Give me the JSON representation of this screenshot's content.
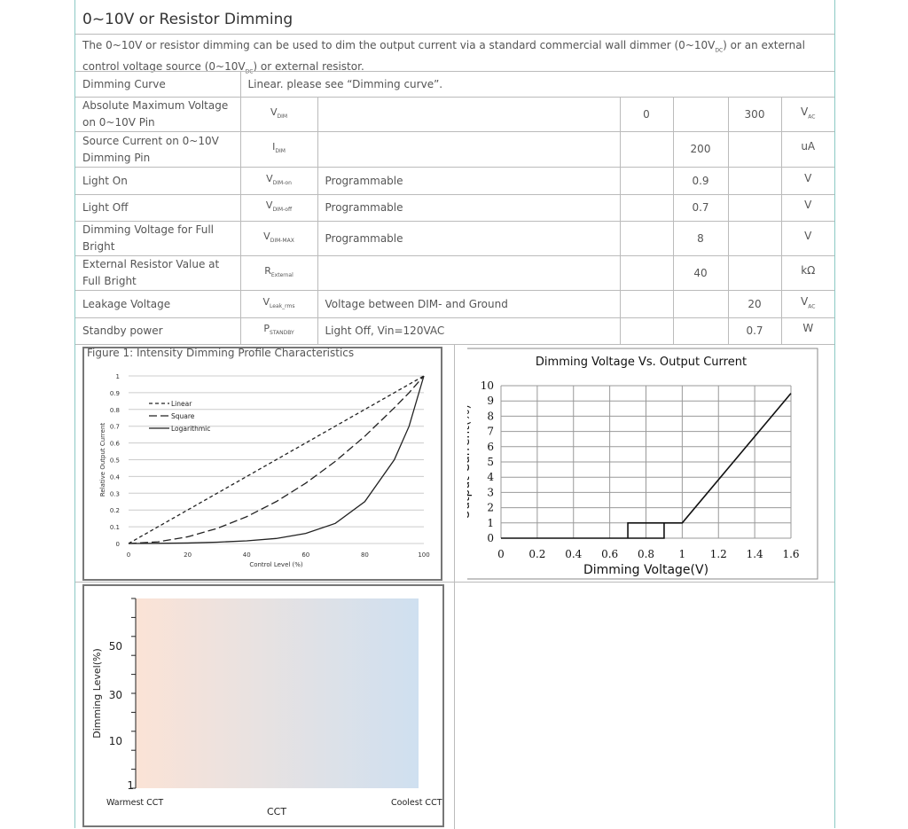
{
  "section": {
    "title": "0~10V or Resistor Dimming",
    "description_parts": [
      "The 0~10V or resistor dimming can be used to dim the output current via a standard commercial wall dimmer (0~10V",
      "DC",
      ") or an external control voltage source (0~10V",
      "DC",
      ") or external resistor."
    ]
  },
  "dimming_curve": {
    "label": "Dimming Curve",
    "value": "Linear. please see “Dimming curve”."
  },
  "rows": [
    {
      "param": "Absolute Maximum Voltage on 0~10V Pin",
      "sym": "V",
      "sub": "DIM",
      "cond": "",
      "min": "0",
      "typ": "",
      "max": "300",
      "unit": "V",
      "unit_sub": "AC"
    },
    {
      "param": "Source Current on 0~10V Dimming Pin",
      "sym": "I",
      "sub": "DIM",
      "cond": "",
      "min": "",
      "typ": "200",
      "max": "",
      "unit": "uA",
      "unit_sub": ""
    },
    {
      "param": "Light On",
      "sym": "V",
      "sub": "DIM-on",
      "cond": "Programmable",
      "min": "",
      "typ": "0.9",
      "max": "",
      "unit": "V",
      "unit_sub": ""
    },
    {
      "param": "Light Off",
      "sym": "V",
      "sub": "DIM-off",
      "cond": "Programmable",
      "min": "",
      "typ": "0.7",
      "max": "",
      "unit": "V",
      "unit_sub": ""
    },
    {
      "param": "Dimming Voltage for Full Bright",
      "sym": "V",
      "sub": "DIM-MAX",
      "cond": "Programmable",
      "min": "",
      "typ": "8",
      "max": "",
      "unit": "V",
      "unit_sub": ""
    },
    {
      "param": "External Resistor Value at Full Bright",
      "sym": "R",
      "sub": "External",
      "cond": "",
      "min": "",
      "typ": "40",
      "max": "",
      "unit": "kΩ",
      "unit_sub": ""
    },
    {
      "param": "Leakage Voltage",
      "sym": "V",
      "sub": "Leak_rms",
      "cond": "Voltage between DIM- and Ground",
      "min": "",
      "typ": "",
      "max": "20",
      "unit": "V",
      "unit_sub": "AC"
    },
    {
      "param": "Standby power",
      "sym": "P",
      "sub": "STANDBY",
      "cond": "Light Off, Vin=120VAC",
      "min": "",
      "typ": "",
      "max": "0.7",
      "unit": "W",
      "unit_sub": ""
    }
  ],
  "chart_data": [
    {
      "type": "line",
      "title": "Figure 1: Intensity Dimming Profile Characteristics",
      "xlabel": "Control Level (%)",
      "ylabel": "Relative Output Current",
      "xlim": [
        0,
        100
      ],
      "ylim": [
        0,
        1
      ],
      "xticks": [
        "0",
        "20",
        "40",
        "60",
        "80",
        "100"
      ],
      "yticks": [
        "0",
        "0.1",
        "0.2",
        "0.3",
        "0.4",
        "0.5",
        "0.6",
        "0.7",
        "0.8",
        "0.9",
        "1"
      ],
      "grid": true,
      "legend": "top-left",
      "x": [
        0,
        10,
        20,
        30,
        40,
        50,
        60,
        70,
        80,
        90,
        95,
        100
      ],
      "series": [
        {
          "name": "Linear",
          "style": "short-dash",
          "values": [
            0,
            0.1,
            0.2,
            0.3,
            0.4,
            0.5,
            0.6,
            0.7,
            0.8,
            0.9,
            0.95,
            1
          ]
        },
        {
          "name": "Square",
          "style": "long-dash",
          "values": [
            0,
            0.01,
            0.04,
            0.09,
            0.16,
            0.25,
            0.36,
            0.49,
            0.64,
            0.81,
            0.9,
            1
          ]
        },
        {
          "name": "Logarithmic",
          "style": "solid",
          "values": [
            0,
            0.001,
            0.003,
            0.008,
            0.016,
            0.03,
            0.06,
            0.12,
            0.25,
            0.5,
            0.7,
            1
          ]
        }
      ]
    },
    {
      "type": "line",
      "title": "Dimming Voltage Vs. Output Current",
      "xlabel": "Dimming Voltage(V)",
      "ylabel": "Output Current(%)",
      "xlim": [
        0,
        1.6
      ],
      "ylim": [
        0,
        10
      ],
      "xticks": [
        "0",
        "0.2",
        "0.4",
        "0.6",
        "0.8",
        "1",
        "1.2",
        "1.4",
        "1.6"
      ],
      "yticks": [
        "0",
        "1",
        "2",
        "3",
        "4",
        "5",
        "6",
        "7",
        "8",
        "9",
        "10"
      ],
      "grid": true,
      "x": [
        0,
        0.7,
        0.7,
        0.9,
        0.9,
        0.7,
        0.7,
        0.9,
        1.0,
        1.6
      ],
      "values": [
        0,
        0,
        1,
        1,
        0,
        0,
        1,
        1,
        1,
        9.5
      ]
    },
    {
      "type": "area",
      "xlabel": "CCT",
      "ylabel": "Dimming Level(%)",
      "xticks": [
        "Warmest CCT",
        "Coolest CCT"
      ],
      "yticks": [
        "1",
        "10",
        "30",
        "50"
      ],
      "colors": {
        "warm": "#fbe3d6",
        "cool": "#cfe0f0"
      }
    }
  ]
}
